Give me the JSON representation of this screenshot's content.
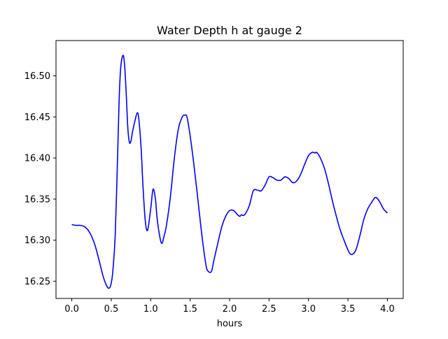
{
  "chart_data": {
    "type": "line",
    "title": "Water Depth h at gauge 2",
    "xlabel": "hours",
    "ylabel": "",
    "xlim": [
      -0.2,
      4.2
    ],
    "ylim": [
      16.229,
      16.543
    ],
    "xticks": [
      0.0,
      0.5,
      1.0,
      1.5,
      2.0,
      2.5,
      3.0,
      3.5,
      4.0
    ],
    "xtick_labels": [
      "0.0",
      "0.5",
      "1.0",
      "1.5",
      "2.0",
      "2.5",
      "3.0",
      "3.5",
      "4.0"
    ],
    "yticks": [
      16.25,
      16.3,
      16.35,
      16.4,
      16.45,
      16.5
    ],
    "ytick_labels": [
      "16.25",
      "16.30",
      "16.35",
      "16.40",
      "16.45",
      "16.50"
    ],
    "grid": false,
    "series": [
      {
        "name": "",
        "color": "#0000ff",
        "x": [
          0.0,
          0.05,
          0.1,
          0.15,
          0.2,
          0.25,
          0.3,
          0.35,
          0.4,
          0.45,
          0.48,
          0.5,
          0.52,
          0.55,
          0.58,
          0.6,
          0.62,
          0.65,
          0.67,
          0.69,
          0.71,
          0.73,
          0.75,
          0.77,
          0.8,
          0.83,
          0.85,
          0.88,
          0.9,
          0.93,
          0.96,
          1.0,
          1.03,
          1.06,
          1.08,
          1.11,
          1.14,
          1.17,
          1.2,
          1.25,
          1.3,
          1.35,
          1.4,
          1.43,
          1.46,
          1.5,
          1.55,
          1.6,
          1.65,
          1.7,
          1.73,
          1.77,
          1.8,
          1.85,
          1.9,
          1.95,
          2.0,
          2.05,
          2.1,
          2.13,
          2.15,
          2.17,
          2.2,
          2.25,
          2.3,
          2.35,
          2.4,
          2.45,
          2.5,
          2.55,
          2.6,
          2.65,
          2.7,
          2.75,
          2.8,
          2.85,
          2.9,
          2.95,
          3.0,
          3.05,
          3.08,
          3.1,
          3.12,
          3.15,
          3.2,
          3.25,
          3.3,
          3.35,
          3.4,
          3.45,
          3.5,
          3.53,
          3.56,
          3.6,
          3.65,
          3.7,
          3.75,
          3.8,
          3.85,
          3.9,
          3.95,
          4.0
        ],
        "y": [
          16.319,
          16.318,
          16.318,
          16.317,
          16.313,
          16.305,
          16.292,
          16.274,
          16.255,
          16.243,
          16.242,
          16.248,
          16.262,
          16.305,
          16.4,
          16.47,
          16.51,
          16.525,
          16.512,
          16.478,
          16.437,
          16.419,
          16.421,
          16.432,
          16.445,
          16.455,
          16.447,
          16.41,
          16.37,
          16.325,
          16.312,
          16.338,
          16.362,
          16.35,
          16.328,
          16.307,
          16.296,
          16.305,
          16.318,
          16.353,
          16.4,
          16.435,
          16.45,
          16.452,
          16.45,
          16.427,
          16.39,
          16.348,
          16.305,
          16.27,
          16.262,
          16.262,
          16.275,
          16.296,
          16.316,
          16.329,
          16.336,
          16.336,
          16.331,
          16.329,
          16.331,
          16.33,
          16.332,
          16.342,
          16.36,
          16.361,
          16.36,
          16.367,
          16.377,
          16.376,
          16.373,
          16.373,
          16.377,
          16.375,
          16.37,
          16.372,
          16.38,
          16.392,
          16.403,
          16.407,
          16.406,
          16.407,
          16.405,
          16.4,
          16.388,
          16.37,
          16.349,
          16.33,
          16.313,
          16.3,
          16.288,
          16.283,
          16.283,
          16.288,
          16.305,
          16.325,
          16.338,
          16.346,
          16.352,
          16.347,
          16.338,
          16.333
        ]
      }
    ]
  }
}
